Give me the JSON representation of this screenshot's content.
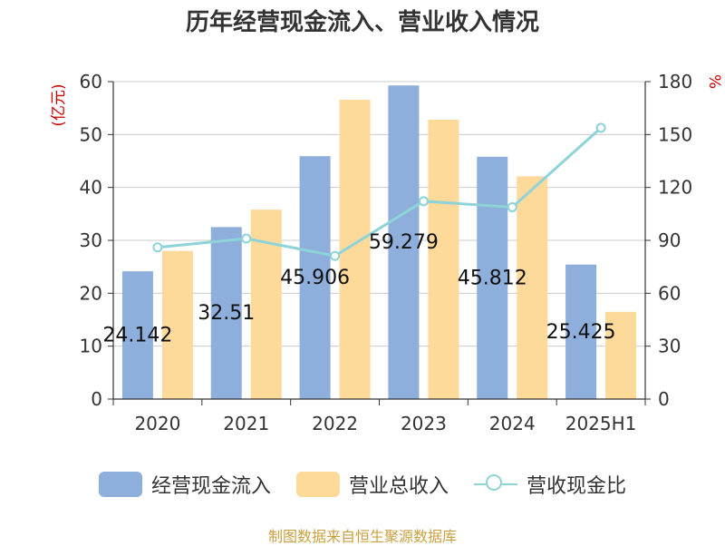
{
  "chart_data": {
    "type": "bar",
    "title": "历年经营现金流入、营业收入情况",
    "categories": [
      "2020",
      "2021",
      "2022",
      "2023",
      "2024",
      "2025H1"
    ],
    "y_left_label": "(亿元)",
    "y_right_label": "%",
    "y_left_lim": [
      0,
      60
    ],
    "y_left_ticks": [
      "0",
      "10",
      "20",
      "30",
      "40",
      "50",
      "60"
    ],
    "y_right_lim": [
      0,
      180
    ],
    "y_right_ticks": [
      "0",
      "30",
      "60",
      "90",
      "120",
      "150",
      "180"
    ],
    "series": [
      {
        "name": "经营现金流入",
        "kind": "bar",
        "axis": "left",
        "color": "#8eaedb",
        "values": [
          24.142,
          32.51,
          45.906,
          59.279,
          45.812,
          25.425
        ],
        "labels": [
          "24.142",
          "32.51",
          "45.906",
          "59.279",
          "45.812",
          "25.425"
        ]
      },
      {
        "name": "营业总收入",
        "kind": "bar",
        "axis": "left",
        "color": "#fdd99a",
        "values": [
          28.0,
          35.8,
          56.6,
          52.8,
          42.1,
          16.5
        ]
      },
      {
        "name": "营收现金比",
        "kind": "line",
        "axis": "right",
        "color": "#8dd3d8",
        "values": [
          86.0,
          91.0,
          81.2,
          112.2,
          108.8,
          153.8
        ]
      }
    ],
    "grid": true,
    "legend_position": "bottom"
  },
  "source_text": "制图数据来自恒生聚源数据库"
}
